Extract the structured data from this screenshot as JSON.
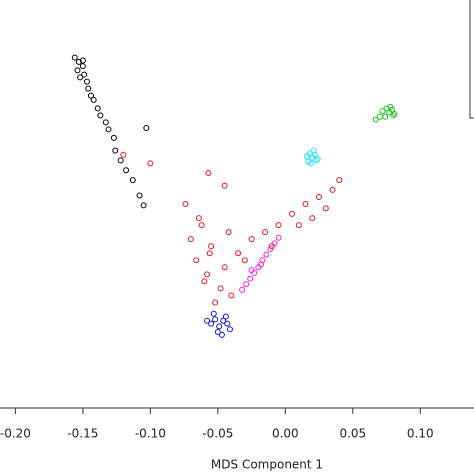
{
  "chart_data": {
    "type": "scatter",
    "xlabel": "MDS Component 1",
    "xlim": [
      -0.2114,
      0.1398
    ],
    "ylim": [
      -0.16,
      0.13
    ],
    "xticks": [
      {
        "value": -0.2,
        "label": "-0.20"
      },
      -0.15,
      {
        "value": -0.1,
        "label": "-0.10"
      },
      -0.05,
      {
        "value": 0,
        "label": "0.00"
      },
      0.05,
      {
        "value": 0.1,
        "label": "0.10"
      }
    ],
    "series": [
      {
        "color": "#e8141b",
        "x": [
          -0.074,
          -0.062,
          -0.055,
          -0.066,
          -0.058,
          -0.048,
          -0.04,
          -0.052,
          -0.06,
          -0.045,
          -0.035,
          -0.025,
          -0.015,
          -0.005,
          0.005,
          0.015,
          0.025,
          0.035,
          0.04,
          0.03,
          0.02,
          0.01,
          -0.01,
          -0.03,
          -0.07,
          -0.056,
          -0.042,
          -0.064,
          -0.12,
          -0.1,
          -0.057,
          -0.045
        ],
        "values": [
          -0.015,
          -0.03,
          -0.045,
          -0.055,
          -0.065,
          -0.075,
          -0.08,
          -0.085,
          -0.07,
          -0.06,
          -0.05,
          -0.04,
          -0.035,
          -0.03,
          -0.022,
          -0.015,
          -0.01,
          -0.005,
          0.002,
          -0.018,
          -0.025,
          -0.03,
          -0.045,
          -0.055,
          -0.04,
          -0.05,
          -0.035,
          -0.025,
          0.02,
          0.014,
          0.007,
          -0.002
        ]
      },
      {
        "color": "#000000",
        "x": [
          -0.156,
          -0.153,
          -0.15,
          -0.154,
          -0.149,
          -0.152,
          -0.147,
          -0.146,
          -0.15,
          -0.144,
          -0.142,
          -0.139,
          -0.137,
          -0.133,
          -0.131,
          -0.127,
          -0.126,
          -0.122,
          -0.118,
          -0.113,
          -0.108,
          -0.105,
          -0.103
        ],
        "values": [
          0.089,
          0.086,
          0.083,
          0.08,
          0.077,
          0.075,
          0.072,
          0.067,
          0.087,
          0.062,
          0.059,
          0.053,
          0.048,
          0.043,
          0.038,
          0.032,
          0.023,
          0.016,
          0.009,
          0.002,
          -0.009,
          -0.016,
          0.039
        ]
      },
      {
        "color": "#16c41a",
        "x": [
          0.072,
          0.075,
          0.077,
          0.079,
          0.081,
          0.074,
          0.078,
          0.08,
          0.067,
          0.07
        ],
        "values": [
          0.051,
          0.053,
          0.05,
          0.052,
          0.049,
          0.047,
          0.054,
          0.048,
          0.045,
          0.047
        ]
      },
      {
        "color": "#1ee8f0",
        "x": [
          0.016,
          0.018,
          0.02,
          0.022,
          0.024,
          0.019,
          0.021,
          0.017,
          0.023
        ],
        "values": [
          0.019,
          0.021,
          0.018,
          0.02,
          0.017,
          0.014,
          0.023,
          0.015,
          0.016
        ]
      },
      {
        "color": "#ff1ad9",
        "x": [
          -0.032,
          -0.029,
          -0.026,
          -0.023,
          -0.02,
          -0.017,
          -0.014,
          -0.011,
          -0.008,
          -0.005,
          -0.025,
          -0.018
        ],
        "values": [
          -0.076,
          -0.072,
          -0.068,
          -0.064,
          -0.06,
          -0.055,
          -0.051,
          -0.047,
          -0.043,
          -0.039,
          -0.062,
          -0.058
        ]
      },
      {
        "color": "#1414e0",
        "x": [
          -0.055,
          -0.052,
          -0.049,
          -0.046,
          -0.043,
          -0.05,
          -0.047,
          -0.044,
          -0.053,
          -0.041,
          -0.058
        ],
        "values": [
          -0.1,
          -0.097,
          -0.102,
          -0.098,
          -0.1,
          -0.106,
          -0.108,
          -0.095,
          -0.093,
          -0.104,
          -0.098
        ]
      }
    ]
  }
}
